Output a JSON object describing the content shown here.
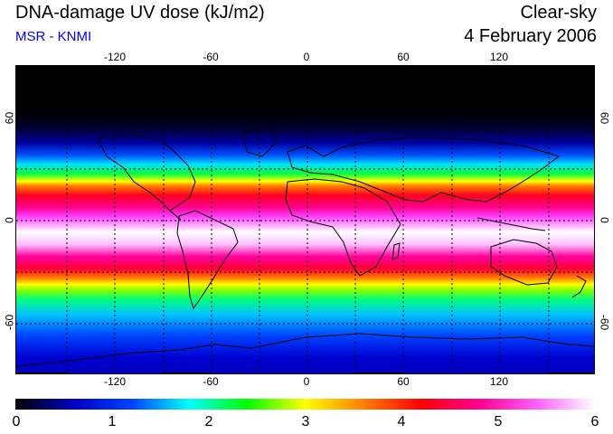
{
  "header": {
    "title": "DNA-damage UV dose (kJ/m2)",
    "source": "MSR - KNMI",
    "condition": "Clear-sky",
    "date": "4 February 2006"
  },
  "map": {
    "longitude_ticks": [
      "-120",
      "-60",
      "0",
      "60",
      "120"
    ],
    "latitude_ticks": [
      "60",
      "0",
      "-60"
    ]
  },
  "colorbar": {
    "labels": [
      "0",
      "1",
      "2",
      "3",
      "4",
      "5",
      "6"
    ],
    "colors": [
      "#000000",
      "#0000c0",
      "#0040ff",
      "#00ffff",
      "#00ff00",
      "#ffff00",
      "#ff8000",
      "#ff0000",
      "#ff0090",
      "#ff60ff",
      "#ffffff"
    ]
  }
}
